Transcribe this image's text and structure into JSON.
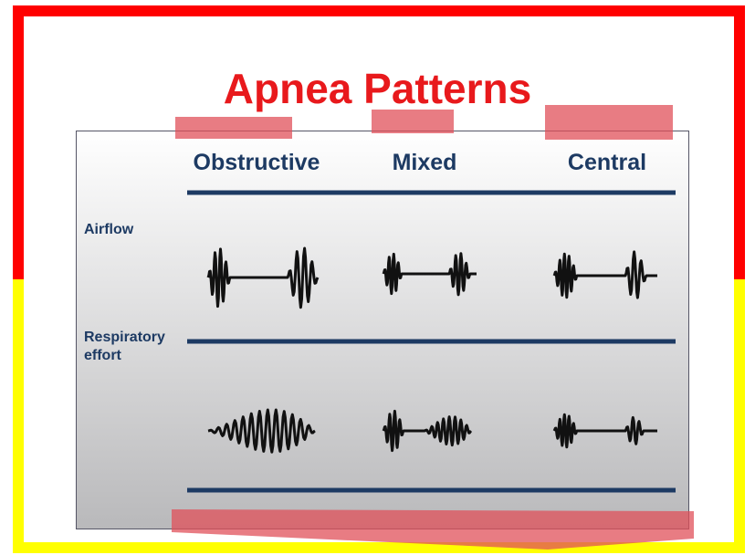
{
  "title": "Apnea Patterns",
  "columns": [
    "Obstructive",
    "Mixed",
    "Central"
  ],
  "rows": [
    "Airflow",
    "Respiratory effort"
  ]
}
